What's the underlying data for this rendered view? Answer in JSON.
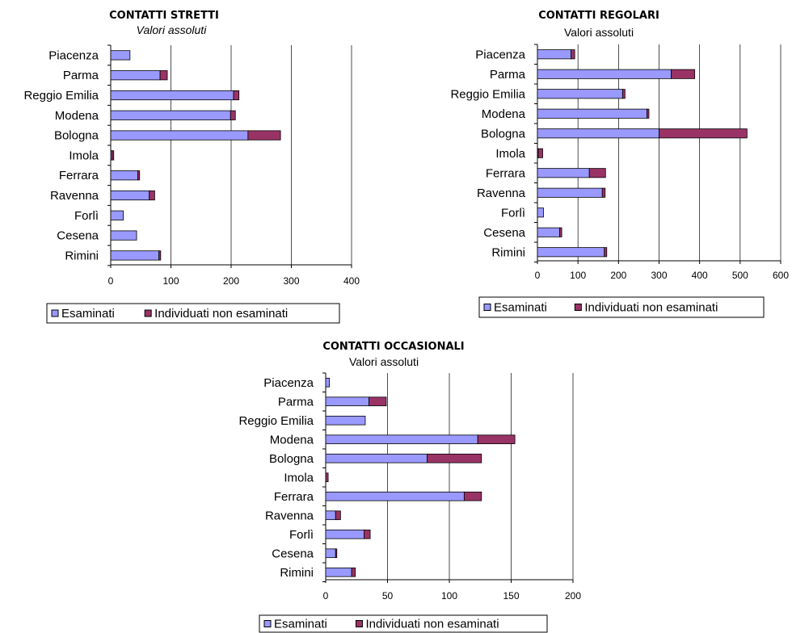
{
  "colors": {
    "examined": "#9999ff",
    "not_examined": "#993366",
    "bar_stroke": "#000000",
    "gridline": "#000000"
  },
  "chart_data": [
    {
      "type": "bar",
      "orientation": "horizontal",
      "stacked": true,
      "title": "CONTATTI STRETTI",
      "subtitle": "Valori assoluti",
      "subtitle_italic": true,
      "categories": [
        "Piacenza",
        "Parma",
        "Reggio Emilia",
        "Modena",
        "Bologna",
        "Imola",
        "Ferrara",
        "Ravenna",
        "Forlì",
        "Cesena",
        "Rimini"
      ],
      "series": [
        {
          "name": "Esaminati",
          "values": [
            32,
            82,
            204,
            199,
            228,
            2,
            45,
            64,
            21,
            43,
            80
          ]
        },
        {
          "name": "Individuati non esaminati",
          "values": [
            0,
            12,
            9,
            8,
            54,
            3,
            3,
            9,
            0,
            0,
            3
          ]
        }
      ],
      "xlim": [
        0,
        400
      ],
      "xticks": [
        "0",
        "100",
        "200",
        "300",
        "400"
      ],
      "grid": true,
      "legend_position": "bottom-left"
    },
    {
      "type": "bar",
      "orientation": "horizontal",
      "stacked": true,
      "title": "CONTATTI REGOLARI",
      "subtitle": "Valori assoluti",
      "subtitle_italic": false,
      "categories": [
        "Piacenza",
        "Parma",
        "Reggio Emilia",
        "Modena",
        "Bologna",
        "Imola",
        "Ferrara",
        "Ravenna",
        "Forlì",
        "Cesena",
        "Rimini"
      ],
      "series": [
        {
          "name": "Esaminati",
          "values": [
            83,
            330,
            210,
            270,
            300,
            2,
            128,
            160,
            15,
            55,
            165
          ]
        },
        {
          "name": "Individuati non esaminati",
          "values": [
            9,
            58,
            6,
            5,
            217,
            11,
            40,
            7,
            0,
            5,
            6
          ]
        }
      ],
      "xlim": [
        0,
        600
      ],
      "xticks": [
        "0",
        "100",
        "200",
        "300",
        "400",
        "500",
        "600"
      ],
      "grid": true,
      "legend_position": "bottom-right"
    },
    {
      "type": "bar",
      "orientation": "horizontal",
      "stacked": true,
      "title": "CONTATTI OCCASIONALI",
      "subtitle": "Valori assoluti",
      "subtitle_italic": false,
      "categories": [
        "Piacenza",
        "Parma",
        "Reggio Emilia",
        "Modena",
        "Bologna",
        "Imola",
        "Ferrara",
        "Ravenna",
        "Forlì",
        "Cesena",
        "Rimini"
      ],
      "series": [
        {
          "name": "Esaminati",
          "values": [
            3,
            35,
            32,
            123,
            82,
            0,
            112,
            8,
            31,
            8,
            21
          ]
        },
        {
          "name": "Individuati non esaminati",
          "values": [
            0,
            14,
            0,
            30,
            44,
            2,
            14,
            4,
            5,
            1,
            3
          ]
        }
      ],
      "xlim": [
        0,
        200
      ],
      "xticks": [
        "0",
        "50",
        "100",
        "150",
        "200"
      ],
      "grid": true,
      "legend_position": "bottom-center"
    }
  ]
}
